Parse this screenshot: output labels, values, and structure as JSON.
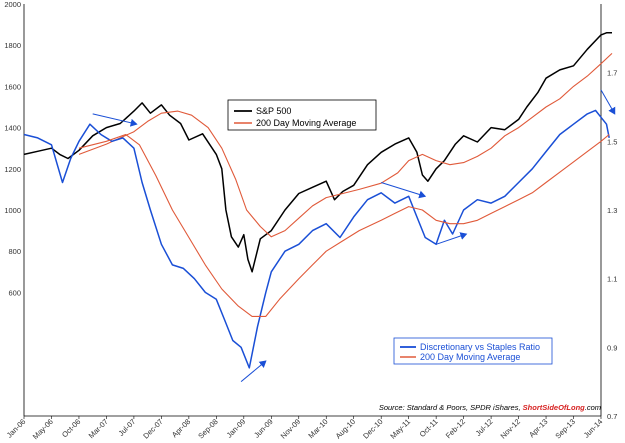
{
  "chart_data": {
    "type": "line",
    "source": {
      "prefix": "Source: Standard & Poors, SPDR iShares, ",
      "brand": "ShortSideOfLong",
      "suffix": ".com"
    },
    "x_ticks": [
      "Jan-06",
      "May-06",
      "Oct-06",
      "Mar-07",
      "Jul-07",
      "Dec-07",
      "Apr-08",
      "Sep-08",
      "Jan-09",
      "Jun-09",
      "Nov-09",
      "Mar-10",
      "Aug-10",
      "Dec-10",
      "May-11",
      "Oct-11",
      "Feb-12",
      "Jul-12",
      "Nov-12",
      "Apr-13",
      "Sep-13",
      "Jun-14"
    ],
    "left_axis": {
      "ylim": [
        0,
        2000
      ],
      "ticks": [
        600,
        800,
        1000,
        1200,
        1400,
        1600,
        1800,
        2000
      ]
    },
    "right_axis": {
      "ylim": [
        0.7,
        1.9
      ],
      "ticks": [
        0.7,
        0.9,
        1.1,
        1.3,
        1.5,
        1.7
      ]
    },
    "legend_top": {
      "placement": "upper-center",
      "entries": [
        {
          "label": "S&P 500",
          "color": "#000000"
        },
        {
          "label": "200 Day Moving Average",
          "color": "#e05a3a"
        }
      ]
    },
    "legend_bottom": {
      "placement": "lower-right",
      "entries": [
        {
          "label": "Discretionary vs Staples Ratio",
          "color": "#1a4fd6"
        },
        {
          "label": "200 Day Moving Average",
          "color": "#e05a3a"
        }
      ]
    },
    "series": [
      {
        "name": "S&P 500",
        "axis": "left",
        "color": "#000000",
        "points": [
          [
            0,
            1270
          ],
          [
            0.5,
            1285
          ],
          [
            1,
            1300
          ],
          [
            1.3,
            1270
          ],
          [
            1.6,
            1250
          ],
          [
            2,
            1290
          ],
          [
            2.5,
            1360
          ],
          [
            3,
            1400
          ],
          [
            3.5,
            1420
          ],
          [
            4,
            1480
          ],
          [
            4.3,
            1520
          ],
          [
            4.6,
            1470
          ],
          [
            5,
            1510
          ],
          [
            5.3,
            1460
          ],
          [
            5.7,
            1420
          ],
          [
            6,
            1340
          ],
          [
            6.5,
            1370
          ],
          [
            7,
            1270
          ],
          [
            7.2,
            1200
          ],
          [
            7.35,
            1000
          ],
          [
            7.55,
            870
          ],
          [
            7.8,
            820
          ],
          [
            8,
            880
          ],
          [
            8.15,
            760
          ],
          [
            8.3,
            700
          ],
          [
            8.6,
            860
          ],
          [
            9,
            900
          ],
          [
            9.5,
            1000
          ],
          [
            10,
            1080
          ],
          [
            10.5,
            1110
          ],
          [
            11,
            1140
          ],
          [
            11.3,
            1050
          ],
          [
            11.6,
            1090
          ],
          [
            12,
            1120
          ],
          [
            12.5,
            1220
          ],
          [
            13,
            1280
          ],
          [
            13.5,
            1320
          ],
          [
            14,
            1350
          ],
          [
            14.3,
            1280
          ],
          [
            14.5,
            1170
          ],
          [
            14.7,
            1140
          ],
          [
            15,
            1200
          ],
          [
            15.3,
            1240
          ],
          [
            15.7,
            1320
          ],
          [
            16,
            1360
          ],
          [
            16.5,
            1330
          ],
          [
            17,
            1400
          ],
          [
            17.5,
            1390
          ],
          [
            18,
            1440
          ],
          [
            18.3,
            1500
          ],
          [
            18.7,
            1570
          ],
          [
            19,
            1640
          ],
          [
            19.5,
            1680
          ],
          [
            20,
            1700
          ],
          [
            20.5,
            1780
          ],
          [
            21,
            1850
          ],
          [
            21.2,
            1860
          ],
          [
            21.4,
            1860
          ]
        ]
      },
      {
        "name": "200 Day Moving Average",
        "axis": "left",
        "color": "#e05a3a",
        "points": [
          [
            2,
            1270
          ],
          [
            3,
            1320
          ],
          [
            4,
            1380
          ],
          [
            4.5,
            1430
          ],
          [
            5,
            1470
          ],
          [
            5.6,
            1480
          ],
          [
            6.1,
            1460
          ],
          [
            6.7,
            1400
          ],
          [
            7.2,
            1300
          ],
          [
            7.7,
            1150
          ],
          [
            8.1,
            1000
          ],
          [
            8.6,
            920
          ],
          [
            9,
            870
          ],
          [
            9.5,
            900
          ],
          [
            10,
            960
          ],
          [
            10.5,
            1020
          ],
          [
            11,
            1060
          ],
          [
            11.6,
            1080
          ],
          [
            12.2,
            1100
          ],
          [
            13,
            1130
          ],
          [
            13.6,
            1180
          ],
          [
            14,
            1240
          ],
          [
            14.5,
            1270
          ],
          [
            15,
            1240
          ],
          [
            15.5,
            1220
          ],
          [
            16,
            1230
          ],
          [
            16.5,
            1260
          ],
          [
            17,
            1300
          ],
          [
            17.5,
            1360
          ],
          [
            18,
            1400
          ],
          [
            18.5,
            1450
          ],
          [
            19,
            1500
          ],
          [
            19.5,
            1540
          ],
          [
            20,
            1600
          ],
          [
            20.5,
            1650
          ],
          [
            21,
            1710
          ],
          [
            21.4,
            1760
          ]
        ]
      },
      {
        "name": "Discretionary vs Staples Ratio",
        "axis": "right",
        "color": "#1a4fd6",
        "points": [
          [
            0,
            1.52
          ],
          [
            0.5,
            1.51
          ],
          [
            1,
            1.49
          ],
          [
            1.4,
            1.38
          ],
          [
            1.7,
            1.45
          ],
          [
            2,
            1.5
          ],
          [
            2.4,
            1.55
          ],
          [
            2.8,
            1.52
          ],
          [
            3.2,
            1.5
          ],
          [
            3.6,
            1.51
          ],
          [
            4,
            1.48
          ],
          [
            4.3,
            1.38
          ],
          [
            4.6,
            1.3
          ],
          [
            5,
            1.2
          ],
          [
            5.4,
            1.14
          ],
          [
            5.8,
            1.13
          ],
          [
            6.2,
            1.1
          ],
          [
            6.6,
            1.06
          ],
          [
            7,
            1.04
          ],
          [
            7.3,
            0.98
          ],
          [
            7.6,
            0.92
          ],
          [
            7.9,
            0.9
          ],
          [
            8.2,
            0.84
          ],
          [
            8.5,
            0.96
          ],
          [
            8.8,
            1.06
          ],
          [
            9,
            1.12
          ],
          [
            9.5,
            1.18
          ],
          [
            10,
            1.2
          ],
          [
            10.5,
            1.24
          ],
          [
            11,
            1.26
          ],
          [
            11.5,
            1.22
          ],
          [
            12,
            1.28
          ],
          [
            12.5,
            1.33
          ],
          [
            13,
            1.35
          ],
          [
            13.5,
            1.32
          ],
          [
            14,
            1.34
          ],
          [
            14.3,
            1.28
          ],
          [
            14.6,
            1.22
          ],
          [
            15,
            1.2
          ],
          [
            15.3,
            1.27
          ],
          [
            15.6,
            1.23
          ],
          [
            16,
            1.3
          ],
          [
            16.5,
            1.33
          ],
          [
            17,
            1.32
          ],
          [
            17.5,
            1.34
          ],
          [
            18,
            1.38
          ],
          [
            18.5,
            1.42
          ],
          [
            19,
            1.47
          ],
          [
            19.5,
            1.52
          ],
          [
            20,
            1.55
          ],
          [
            20.5,
            1.58
          ],
          [
            20.8,
            1.59
          ],
          [
            21,
            1.57
          ],
          [
            21.2,
            1.55
          ],
          [
            21.3,
            1.51
          ]
        ]
      },
      {
        "name": "200 Day Moving Average",
        "axis": "right",
        "color": "#e05a3a",
        "points": [
          [
            2,
            1.48
          ],
          [
            3,
            1.5
          ],
          [
            3.7,
            1.52
          ],
          [
            4.2,
            1.49
          ],
          [
            4.8,
            1.4
          ],
          [
            5.4,
            1.3
          ],
          [
            6,
            1.22
          ],
          [
            6.6,
            1.14
          ],
          [
            7.2,
            1.07
          ],
          [
            7.8,
            1.02
          ],
          [
            8.3,
            0.99
          ],
          [
            8.8,
            0.99
          ],
          [
            9.3,
            1.04
          ],
          [
            10,
            1.1
          ],
          [
            10.5,
            1.14
          ],
          [
            11,
            1.18
          ],
          [
            11.6,
            1.21
          ],
          [
            12.2,
            1.24
          ],
          [
            13,
            1.27
          ],
          [
            13.5,
            1.29
          ],
          [
            14,
            1.31
          ],
          [
            14.5,
            1.3
          ],
          [
            15,
            1.27
          ],
          [
            15.5,
            1.26
          ],
          [
            16,
            1.26
          ],
          [
            16.5,
            1.27
          ],
          [
            17,
            1.29
          ],
          [
            17.5,
            1.31
          ],
          [
            18,
            1.33
          ],
          [
            18.5,
            1.35
          ],
          [
            19,
            1.38
          ],
          [
            19.5,
            1.41
          ],
          [
            20,
            1.44
          ],
          [
            20.5,
            1.47
          ],
          [
            21,
            1.5
          ],
          [
            21.3,
            1.52
          ]
        ]
      }
    ],
    "annotation_arrows": [
      {
        "axis": "right",
        "from": [
          2.5,
          1.58
        ],
        "to": [
          4.1,
          1.55
        ],
        "color": "#1a4fd6"
      },
      {
        "axis": "right",
        "from": [
          7.9,
          0.8
        ],
        "to": [
          8.8,
          0.86
        ],
        "color": "#1a4fd6"
      },
      {
        "axis": "right",
        "from": [
          13.0,
          1.38
        ],
        "to": [
          14.6,
          1.34
        ],
        "color": "#1a4fd6"
      },
      {
        "axis": "right",
        "from": [
          15.0,
          1.2
        ],
        "to": [
          16.1,
          1.23
        ],
        "color": "#1a4fd6"
      },
      {
        "axis": "right",
        "from": [
          21.0,
          1.65
        ],
        "to": [
          21.5,
          1.58
        ],
        "color": "#1a4fd6"
      }
    ]
  }
}
